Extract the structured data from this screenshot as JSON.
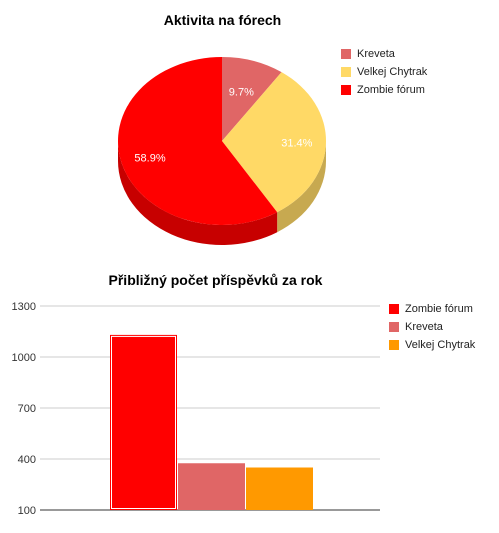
{
  "chart_data": [
    {
      "type": "pie",
      "title": "Aktivita na fórech",
      "three_d": true,
      "legend_position": "right",
      "slices": [
        {
          "name": "Kreveta",
          "value": 9.7,
          "label": "9.7%",
          "color": "#e06666"
        },
        {
          "name": "Velkej Chytrak",
          "value": 31.4,
          "label": "31.4%",
          "color": "#ffd966"
        },
        {
          "name": "Zombie fórum",
          "value": 58.9,
          "label": "58.9%",
          "color": "#ff0000"
        }
      ],
      "legend": [
        {
          "name": "Kreveta",
          "color": "#e06666"
        },
        {
          "name": "Velkej Chytrak",
          "color": "#ffd966"
        },
        {
          "name": "Zombie fórum",
          "color": "#ff0000"
        }
      ]
    },
    {
      "type": "bar",
      "title": "Přibližný počet příspěvků za rok",
      "legend_position": "right",
      "grid": true,
      "ylim": [
        100,
        1300
      ],
      "yticks": [
        100,
        400,
        700,
        1000,
        1300
      ],
      "ytick_labels": [
        "100",
        "400",
        "700",
        "1000",
        "1300"
      ],
      "series": [
        {
          "name": "Zombie fórum",
          "values": [
            1130
          ],
          "color": "#ff0000"
        },
        {
          "name": "Kreveta",
          "values": [
            375
          ],
          "color": "#e06666"
        },
        {
          "name": "Velkej Chytrak",
          "values": [
            350
          ],
          "color": "#ff9900"
        }
      ],
      "legend": [
        {
          "name": "Zombie fórum",
          "color": "#ff0000"
        },
        {
          "name": "Kreveta",
          "color": "#e06666"
        },
        {
          "name": "Velkej Chytrak",
          "color": "#ff9900"
        }
      ]
    }
  ]
}
